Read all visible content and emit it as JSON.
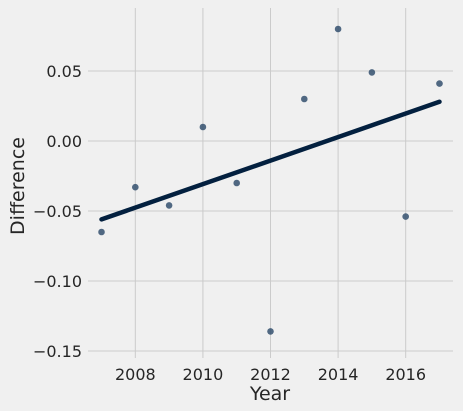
{
  "chart_data": {
    "type": "scatter",
    "title": "",
    "xlabel": "Year",
    "ylabel": "Difference",
    "xlim": [
      2006.6,
      2017.4
    ],
    "ylim": [
      -0.155,
      0.095
    ],
    "xticks": [
      2008,
      2010,
      2012,
      2014,
      2016
    ],
    "xtick_labels": [
      "2008",
      "2010",
      "2012",
      "2014",
      "2016"
    ],
    "yticks": [
      -0.15,
      -0.1,
      -0.05,
      0.0,
      0.05
    ],
    "ytick_labels": [
      "−0.15",
      "−0.10",
      "−0.05",
      "0.00",
      "0.05"
    ],
    "grid": true,
    "legend": "none",
    "series": [
      {
        "color": "#34506f",
        "x": [
          2007,
          2008,
          2009,
          2010,
          2011,
          2012,
          2013,
          2014,
          2015,
          2016,
          2017
        ],
        "y": [
          -0.065,
          -0.033,
          -0.046,
          0.01,
          -0.03,
          -0.136,
          0.03,
          0.08,
          0.049,
          -0.054,
          0.041
        ]
      }
    ],
    "fit_line": {
      "color": "#03203f",
      "x": [
        2007,
        2017
      ],
      "y": [
        -0.056,
        0.028
      ]
    }
  }
}
